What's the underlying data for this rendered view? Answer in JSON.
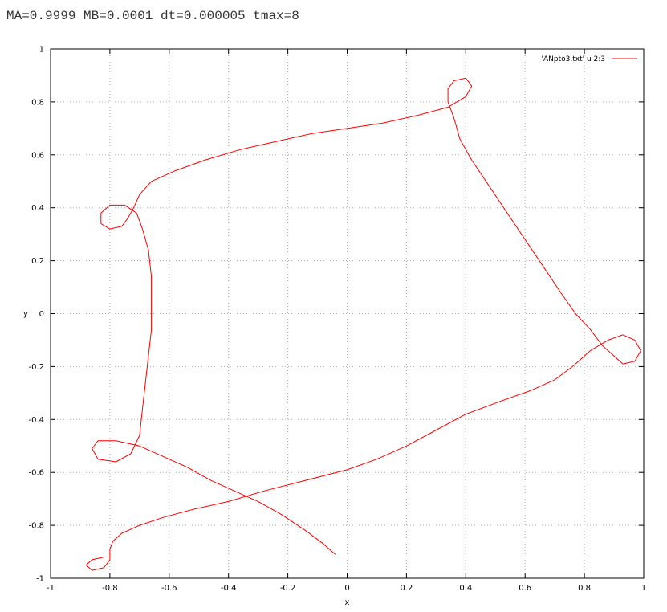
{
  "caption": "MA=0.9999 MB=0.0001 dt=0.000005 tmax=8",
  "chart_data": {
    "type": "line",
    "title": "",
    "xlabel": "x",
    "ylabel": "y",
    "xlim": [
      -1,
      1
    ],
    "ylim": [
      -1,
      1
    ],
    "xticks": [
      -1,
      -0.8,
      -0.6,
      -0.4,
      -0.2,
      0,
      0.2,
      0.4,
      0.6,
      0.8,
      1
    ],
    "yticks": [
      -1,
      -0.8,
      -0.6,
      -0.4,
      -0.2,
      0,
      0.2,
      0.4,
      0.6,
      0.8,
      1
    ],
    "grid": true,
    "legend_position": "top-right",
    "series": [
      {
        "name": "'ANpto3.txt' u 2:3",
        "color": "#ff0000",
        "points": [
          [
            -0.82,
            -0.92
          ],
          [
            -0.86,
            -0.93
          ],
          [
            -0.88,
            -0.95
          ],
          [
            -0.86,
            -0.97
          ],
          [
            -0.82,
            -0.96
          ],
          [
            -0.8,
            -0.93
          ],
          [
            -0.8,
            -0.89
          ],
          [
            -0.79,
            -0.86
          ],
          [
            -0.76,
            -0.83
          ],
          [
            -0.7,
            -0.8
          ],
          [
            -0.62,
            -0.77
          ],
          [
            -0.52,
            -0.74
          ],
          [
            -0.4,
            -0.71
          ],
          [
            -0.28,
            -0.67
          ],
          [
            -0.14,
            -0.63
          ],
          [
            0.0,
            -0.59
          ],
          [
            0.1,
            -0.55
          ],
          [
            0.2,
            -0.5
          ],
          [
            0.3,
            -0.44
          ],
          [
            0.4,
            -0.38
          ],
          [
            0.52,
            -0.33
          ],
          [
            0.62,
            -0.29
          ],
          [
            0.7,
            -0.25
          ],
          [
            0.76,
            -0.2
          ],
          [
            0.82,
            -0.14
          ],
          [
            0.88,
            -0.1
          ],
          [
            0.93,
            -0.08
          ],
          [
            0.97,
            -0.1
          ],
          [
            0.99,
            -0.14
          ],
          [
            0.97,
            -0.18
          ],
          [
            0.93,
            -0.19
          ],
          [
            0.9,
            -0.16
          ],
          [
            0.86,
            -0.12
          ],
          [
            0.82,
            -0.06
          ],
          [
            0.77,
            0.0
          ],
          [
            0.72,
            0.08
          ],
          [
            0.66,
            0.18
          ],
          [
            0.6,
            0.28
          ],
          [
            0.54,
            0.38
          ],
          [
            0.48,
            0.48
          ],
          [
            0.42,
            0.58
          ],
          [
            0.38,
            0.66
          ],
          [
            0.36,
            0.74
          ],
          [
            0.34,
            0.8
          ],
          [
            0.34,
            0.85
          ],
          [
            0.36,
            0.88
          ],
          [
            0.4,
            0.89
          ],
          [
            0.42,
            0.86
          ],
          [
            0.4,
            0.82
          ],
          [
            0.34,
            0.78
          ],
          [
            0.24,
            0.75
          ],
          [
            0.12,
            0.72
          ],
          [
            0.0,
            0.7
          ],
          [
            -0.12,
            0.68
          ],
          [
            -0.24,
            0.65
          ],
          [
            -0.36,
            0.62
          ],
          [
            -0.48,
            0.58
          ],
          [
            -0.58,
            0.54
          ],
          [
            -0.66,
            0.5
          ],
          [
            -0.7,
            0.45
          ],
          [
            -0.72,
            0.4
          ],
          [
            -0.74,
            0.36
          ],
          [
            -0.76,
            0.33
          ],
          [
            -0.8,
            0.32
          ],
          [
            -0.83,
            0.34
          ],
          [
            -0.83,
            0.38
          ],
          [
            -0.8,
            0.41
          ],
          [
            -0.75,
            0.41
          ],
          [
            -0.71,
            0.38
          ],
          [
            -0.69,
            0.32
          ],
          [
            -0.67,
            0.24
          ],
          [
            -0.66,
            0.14
          ],
          [
            -0.66,
            0.04
          ],
          [
            -0.66,
            -0.06
          ],
          [
            -0.67,
            -0.16
          ],
          [
            -0.68,
            -0.26
          ],
          [
            -0.69,
            -0.36
          ],
          [
            -0.7,
            -0.46
          ],
          [
            -0.73,
            -0.53
          ],
          [
            -0.78,
            -0.56
          ],
          [
            -0.84,
            -0.55
          ],
          [
            -0.86,
            -0.51
          ],
          [
            -0.84,
            -0.48
          ],
          [
            -0.78,
            -0.48
          ],
          [
            -0.7,
            -0.5
          ],
          [
            -0.62,
            -0.54
          ],
          [
            -0.54,
            -0.58
          ],
          [
            -0.46,
            -0.63
          ],
          [
            -0.38,
            -0.67
          ],
          [
            -0.3,
            -0.71
          ],
          [
            -0.22,
            -0.76
          ],
          [
            -0.14,
            -0.82
          ],
          [
            -0.08,
            -0.87
          ],
          [
            -0.04,
            -0.91
          ]
        ]
      }
    ]
  }
}
